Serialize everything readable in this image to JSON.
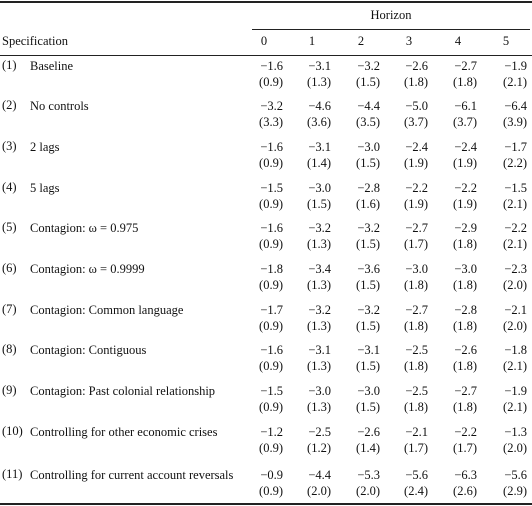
{
  "header": {
    "horizon_label": "Horizon",
    "spec_label": "Specification",
    "horizons": [
      "0",
      "1",
      "2",
      "3",
      "4",
      "5"
    ]
  },
  "rows": [
    {
      "num": "(1)",
      "label": "Baseline",
      "est": [
        "−1.6",
        "−3.1",
        "−3.2",
        "−2.6",
        "−2.7",
        "−1.9"
      ],
      "se": [
        "(0.9)",
        "(1.3)",
        "(1.5)",
        "(1.8)",
        "(1.8)",
        "(2.1)"
      ]
    },
    {
      "num": "(2)",
      "label": "No controls",
      "est": [
        "−3.2",
        "−4.6",
        "−4.4",
        "−5.0",
        "−6.1",
        "−6.4"
      ],
      "se": [
        "(3.3)",
        "(3.6)",
        "(3.5)",
        "(3.7)",
        "(3.7)",
        "(3.9)"
      ]
    },
    {
      "num": "(3)",
      "label": "2 lags",
      "est": [
        "−1.6",
        "−3.1",
        "−3.0",
        "−2.4",
        "−2.4",
        "−1.7"
      ],
      "se": [
        "(0.9)",
        "(1.4)",
        "(1.5)",
        "(1.9)",
        "(1.9)",
        "(2.2)"
      ]
    },
    {
      "num": "(4)",
      "label": "5 lags",
      "est": [
        "−1.5",
        "−3.0",
        "−2.8",
        "−2.2",
        "−2.2",
        "−1.5"
      ],
      "se": [
        "(0.9)",
        "(1.5)",
        "(1.6)",
        "(1.9)",
        "(1.9)",
        "(2.1)"
      ]
    },
    {
      "num": "(5)",
      "label": "Contagion: ω = 0.975",
      "est": [
        "−1.6",
        "−3.2",
        "−3.2",
        "−2.7",
        "−2.9",
        "−2.2"
      ],
      "se": [
        "(0.9)",
        "(1.3)",
        "(1.5)",
        "(1.7)",
        "(1.8)",
        "(2.1)"
      ]
    },
    {
      "num": "(6)",
      "label": "Contagion: ω = 0.9999",
      "est": [
        "−1.8",
        "−3.4",
        "−3.6",
        "−3.0",
        "−3.0",
        "−2.3"
      ],
      "se": [
        "(0.9)",
        "(1.3)",
        "(1.5)",
        "(1.8)",
        "(1.8)",
        "(2.0)"
      ]
    },
    {
      "num": "(7)",
      "label": "Contagion: Common language",
      "est": [
        "−1.7",
        "−3.2",
        "−3.2",
        "−2.7",
        "−2.8",
        "−2.1"
      ],
      "se": [
        "(0.9)",
        "(1.3)",
        "(1.5)",
        "(1.8)",
        "(1.8)",
        "(2.0)"
      ]
    },
    {
      "num": "(8)",
      "label": "Contagion: Contiguous",
      "est": [
        "−1.6",
        "−3.1",
        "−3.1",
        "−2.5",
        "−2.6",
        "−1.8"
      ],
      "se": [
        "(0.9)",
        "(1.3)",
        "(1.5)",
        "(1.8)",
        "(1.8)",
        "(2.1)"
      ]
    },
    {
      "num": "(9)",
      "label": "Contagion: Past colonial relationship",
      "est": [
        "−1.5",
        "−3.0",
        "−3.0",
        "−2.5",
        "−2.7",
        "−1.9"
      ],
      "se": [
        "(0.9)",
        "(1.3)",
        "(1.5)",
        "(1.8)",
        "(1.8)",
        "(2.1)"
      ]
    },
    {
      "num": "(10)",
      "label": "Controlling for other economic crises",
      "est": [
        "−1.2",
        "−2.5",
        "−2.6",
        "−2.1",
        "−2.2",
        "−1.3"
      ],
      "se": [
        "(0.9)",
        "(1.2)",
        "(1.4)",
        "(1.7)",
        "(1.7)",
        "(2.0)"
      ]
    },
    {
      "num": "(11)",
      "label": "Controlling for current account reversals",
      "est": [
        "−0.9",
        "−4.4",
        "−5.3",
        "−5.6",
        "−6.3",
        "−5.6"
      ],
      "se": [
        "(0.9)",
        "(2.0)",
        "(2.0)",
        "(2.4)",
        "(2.6)",
        "(2.9)"
      ]
    }
  ]
}
